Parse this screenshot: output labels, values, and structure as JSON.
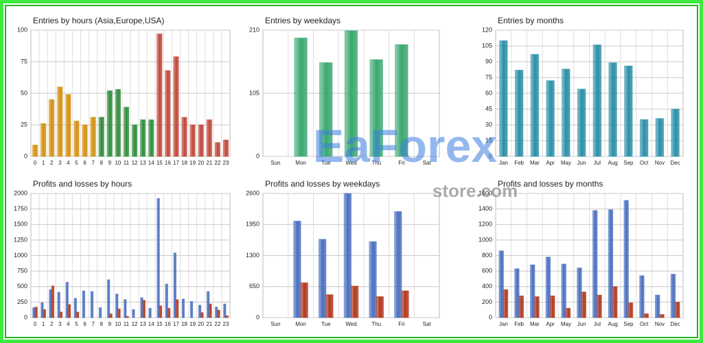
{
  "chart_data": [
    {
      "type": "bar",
      "title": "Entries by hours (Asia,Europe,USA)",
      "categories": [
        "0",
        "1",
        "2",
        "3",
        "4",
        "5",
        "6",
        "7",
        "8",
        "9",
        "10",
        "11",
        "12",
        "13",
        "14",
        "15",
        "16",
        "17",
        "18",
        "19",
        "20",
        "21",
        "22",
        "23"
      ],
      "values": [
        9,
        26,
        45,
        55,
        49,
        28,
        25,
        31,
        31,
        52,
        53,
        39,
        25,
        29,
        29,
        97,
        68,
        79,
        31,
        25,
        25,
        29,
        11,
        13
      ],
      "colors": [
        "#d4900f",
        "#d4900f",
        "#d4900f",
        "#d4900f",
        "#d4900f",
        "#d4900f",
        "#d4900f",
        "#d4900f",
        "#2e8b3a",
        "#2e8b3a",
        "#2e8b3a",
        "#2e8b3a",
        "#2e8b3a",
        "#2e8b3a",
        "#2e8b3a",
        "#c0483a",
        "#c0483a",
        "#c0483a",
        "#c0483a",
        "#c0483a",
        "#c0483a",
        "#c0483a",
        "#c0483a",
        "#c0483a"
      ],
      "ylim": [
        0,
        100
      ],
      "yticks": [
        0,
        25,
        50,
        75,
        100
      ],
      "grid": true
    },
    {
      "type": "bar",
      "title": "Entries by weekdays",
      "categories": [
        "Sun",
        "Mon",
        "Tue",
        "Wed",
        "Thu",
        "Fri",
        "Sat"
      ],
      "values": [
        0,
        197,
        156,
        209,
        161,
        186,
        0
      ],
      "color": "#3aa870",
      "ylim": [
        0,
        210
      ],
      "yticks": [
        0,
        105,
        210
      ],
      "grid": true
    },
    {
      "type": "bar",
      "title": "Entries by months",
      "categories": [
        "Jan",
        "Feb",
        "Mar",
        "Apr",
        "May",
        "Jun",
        "Jul",
        "Aug",
        "Sep",
        "Oct",
        "Nov",
        "Dec"
      ],
      "values": [
        110,
        82,
        97,
        72,
        83,
        64,
        106,
        89,
        86,
        35,
        36,
        45
      ],
      "color": "#2a8fa8",
      "ylim": [
        0,
        120
      ],
      "yticks": [
        0,
        15,
        30,
        45,
        60,
        75,
        90,
        105,
        120
      ],
      "grid": true
    },
    {
      "type": "grouped-bar",
      "title": "Profits and losses by hours",
      "categories": [
        "0",
        "1",
        "2",
        "3",
        "4",
        "5",
        "6",
        "7",
        "8",
        "9",
        "10",
        "11",
        "12",
        "13",
        "14",
        "15",
        "16",
        "17",
        "18",
        "19",
        "20",
        "21",
        "22",
        "23"
      ],
      "series": [
        {
          "color": "#4a6fbf",
          "values": [
            160,
            240,
            450,
            410,
            570,
            310,
            430,
            420,
            160,
            610,
            380,
            290,
            130,
            320,
            150,
            1920,
            540,
            1040,
            300,
            260,
            200,
            420,
            170,
            220
          ]
        },
        {
          "color": "#b0381e",
          "values": [
            170,
            130,
            510,
            90,
            210,
            90,
            0,
            0,
            0,
            60,
            140,
            20,
            0,
            280,
            0,
            190,
            150,
            290,
            0,
            0,
            80,
            220,
            120,
            30
          ]
        }
      ],
      "ylim": [
        0,
        2000
      ],
      "yticks": [
        0,
        250,
        500,
        750,
        1000,
        1250,
        1500,
        1750,
        2000
      ],
      "grid": true
    },
    {
      "type": "grouped-bar",
      "title": "Profits and losses by weekdays",
      "categories": [
        "Sun",
        "Mon",
        "Tue",
        "Wed",
        "Thu",
        "Fri",
        "Sat"
      ],
      "series": [
        {
          "color": "#4a6fbf",
          "values": [
            0,
            2020,
            1640,
            2600,
            1590,
            2220,
            0
          ]
        },
        {
          "color": "#b0381e",
          "values": [
            0,
            730,
            480,
            660,
            440,
            560,
            0
          ]
        }
      ],
      "ylim": [
        0,
        2600
      ],
      "yticks": [
        0,
        650,
        1300,
        1950,
        2600
      ],
      "grid": true
    },
    {
      "type": "grouped-bar",
      "title": "Profits and losses by months",
      "categories": [
        "Jan",
        "Feb",
        "Mar",
        "Apr",
        "May",
        "Jun",
        "Jul",
        "Aug",
        "Sep",
        "Oct",
        "Nov",
        "Dec"
      ],
      "series": [
        {
          "color": "#4a6fbf",
          "values": [
            860,
            630,
            680,
            780,
            690,
            640,
            1380,
            1390,
            1510,
            540,
            290,
            560
          ]
        },
        {
          "color": "#b0381e",
          "values": [
            360,
            280,
            270,
            280,
            120,
            330,
            290,
            400,
            190,
            50,
            40,
            200
          ]
        }
      ],
      "ylim": [
        0,
        1600
      ],
      "yticks": [
        0,
        200,
        400,
        600,
        800,
        1000,
        1200,
        1400,
        1600
      ],
      "grid": true
    }
  ],
  "watermark": {
    "brand": "EaForex",
    "site": "store.com"
  }
}
